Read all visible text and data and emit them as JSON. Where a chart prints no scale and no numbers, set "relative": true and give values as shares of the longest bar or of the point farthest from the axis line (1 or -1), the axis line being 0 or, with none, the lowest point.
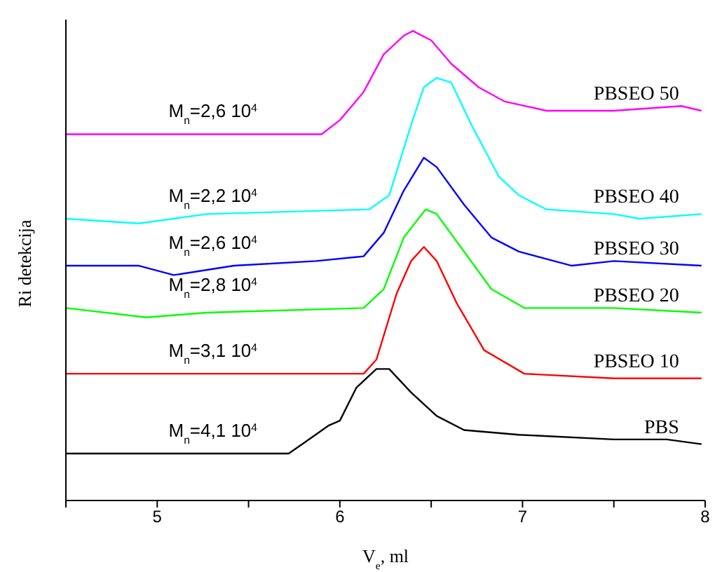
{
  "chart_data": {
    "type": "line",
    "relative": true,
    "xlabel": "V$_{e}$, ml",
    "ylabel": "Ri detekcija",
    "xlim": [
      4.5,
      8
    ],
    "xticks": [
      {
        "value": 4.5,
        "label": null
      },
      5,
      {
        "value": 5.5,
        "label": null
      },
      6,
      {
        "value": 6.5,
        "label": null
      },
      7,
      {
        "value": 7.5,
        "label": null
      },
      8
    ],
    "grid": false,
    "legend": false,
    "marker": "none",
    "line_style": "solid",
    "series": [
      {
        "name": "PBSEO 50",
        "color": "#ff00ff",
        "x": [
          4.5,
          5.5,
          5.9,
          6.0,
          6.13,
          6.24,
          6.35,
          6.4,
          6.5,
          6.61,
          6.76,
          6.9,
          7.13,
          7.5,
          7.87,
          7.98
        ],
        "values": [
          0.78,
          0.78,
          0.78,
          0.81,
          0.87,
          0.95,
          0.99,
          1.0,
          0.98,
          0.93,
          0.88,
          0.85,
          0.83,
          0.83,
          0.84,
          0.83
        ]
      },
      {
        "name": "PBSEO 40",
        "color": "#00ffff",
        "x": [
          4.5,
          4.9,
          5.27,
          6.16,
          6.27,
          6.39,
          6.46,
          6.53,
          6.61,
          6.72,
          6.87,
          6.98,
          7.13,
          7.5,
          7.64,
          7.98
        ],
        "values": [
          0.6,
          0.59,
          0.61,
          0.62,
          0.65,
          0.8,
          0.88,
          0.9,
          0.89,
          0.8,
          0.69,
          0.65,
          0.62,
          0.61,
          0.6,
          0.61
        ]
      },
      {
        "name": "PBSEO 30",
        "color": "#0000ff",
        "x": [
          4.5,
          4.9,
          5.09,
          5.42,
          5.87,
          6.13,
          6.24,
          6.35,
          6.46,
          6.53,
          6.68,
          6.83,
          6.98,
          7.27,
          7.5,
          7.98
        ],
        "values": [
          0.5,
          0.5,
          0.48,
          0.5,
          0.51,
          0.52,
          0.57,
          0.66,
          0.73,
          0.71,
          0.63,
          0.56,
          0.53,
          0.5,
          0.51,
          0.5
        ]
      },
      {
        "name": "PBSEO 20",
        "color": "#00ff00",
        "x": [
          4.5,
          4.94,
          5.27,
          6.13,
          6.24,
          6.35,
          6.47,
          6.53,
          6.68,
          6.83,
          7.01,
          7.5,
          7.98
        ],
        "values": [
          0.41,
          0.39,
          0.4,
          0.41,
          0.45,
          0.56,
          0.62,
          0.61,
          0.53,
          0.45,
          0.41,
          0.41,
          0.4
        ]
      },
      {
        "name": "PBSEO 10",
        "color": "#ff0000",
        "x": [
          4.5,
          5.64,
          6.13,
          6.2,
          6.31,
          6.39,
          6.46,
          6.53,
          6.64,
          6.79,
          7.01,
          7.5,
          7.98
        ],
        "values": [
          0.27,
          0.27,
          0.27,
          0.3,
          0.44,
          0.51,
          0.54,
          0.51,
          0.42,
          0.32,
          0.27,
          0.26,
          0.26
        ]
      },
      {
        "name": "PBS",
        "color": "#000000",
        "x": [
          4.5,
          5.27,
          5.72,
          5.83,
          5.94,
          6.0,
          6.09,
          6.2,
          6.27,
          6.39,
          6.53,
          6.68,
          6.98,
          7.5,
          7.79,
          7.98
        ],
        "values": [
          0.1,
          0.1,
          0.1,
          0.13,
          0.16,
          0.17,
          0.24,
          0.28,
          0.28,
          0.23,
          0.18,
          0.15,
          0.14,
          0.13,
          0.13,
          0.12
        ]
      }
    ],
    "annotations": [
      "M$_{n}$=2,6 10$^{4}$",
      "M$_{n}$=2,2 10$^{4}$",
      "M$_{n}$=2,6 10$^{4}$",
      "M$_{n}$=2,8 10$^{4}$",
      "M$_{n}$=3,1 10$^{4}$",
      "M$_{n}$=4,1 10$^{4}$"
    ]
  }
}
